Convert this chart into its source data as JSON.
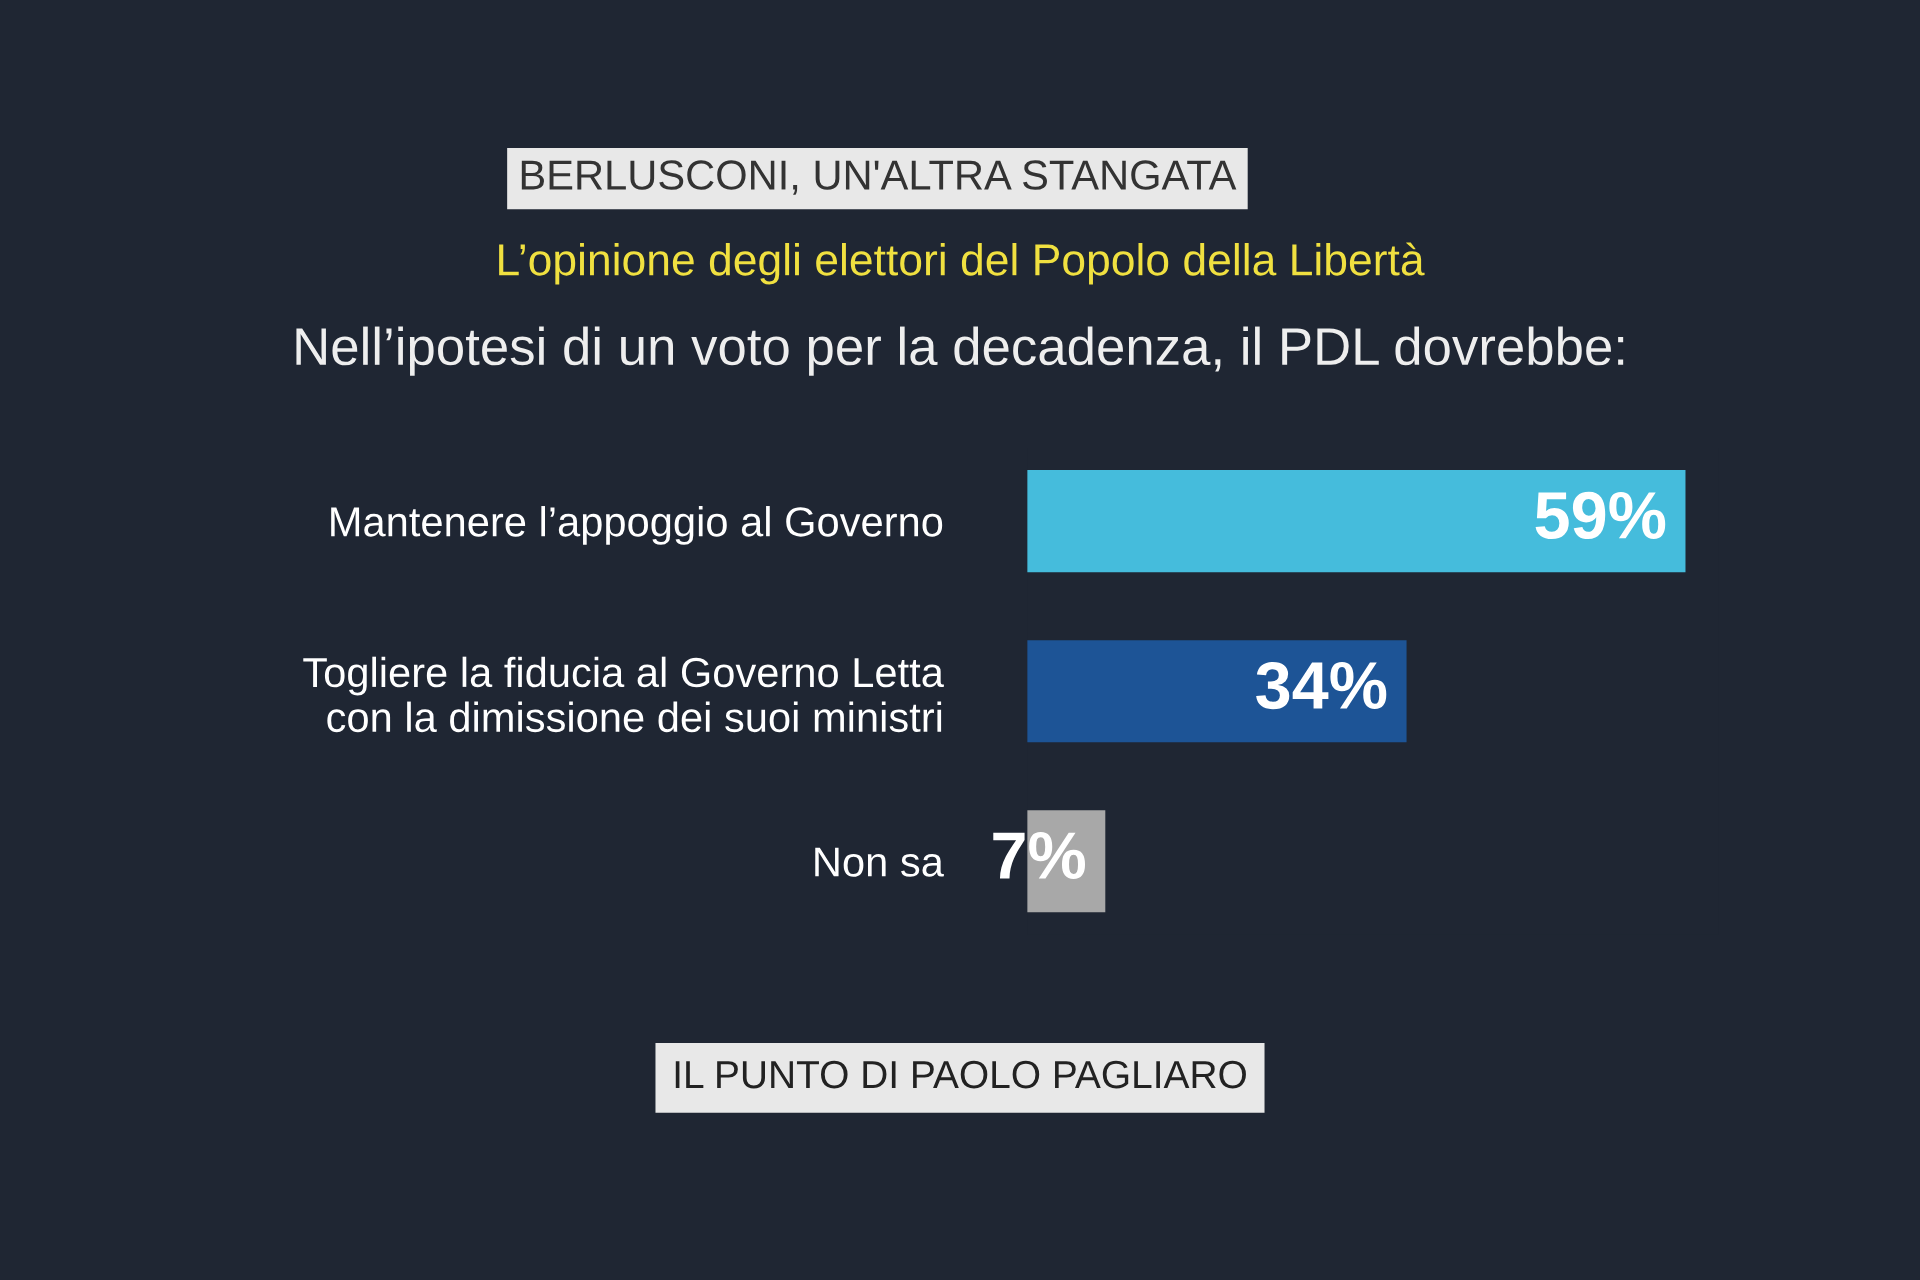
{
  "chart_data": {
    "type": "bar",
    "orientation": "horizontal",
    "title": "BERLUSCONI, UN'ALTRA STANGATA",
    "subtitle": "L’opinione degli elettori del Popolo della Libertà",
    "annotations": [
      "Nell’ipotesi di un voto per la decadenza, il PDL dovrebbe:",
      "IL PUNTO DI PAOLO PAGLIARO"
    ],
    "categories": [
      "Mantenere l’appoggio al Governo",
      "Togliere la fiducia al Governo Letta\ncon la dimissione dei suoi ministri",
      "Non sa"
    ],
    "values": [
      59,
      34,
      7
    ],
    "colors": [
      "#45bcdc",
      "#1d5496",
      "#a8a8a8"
    ],
    "value_labels": [
      "59%",
      "34%",
      "7%"
    ],
    "grid": false,
    "legend": false
  }
}
